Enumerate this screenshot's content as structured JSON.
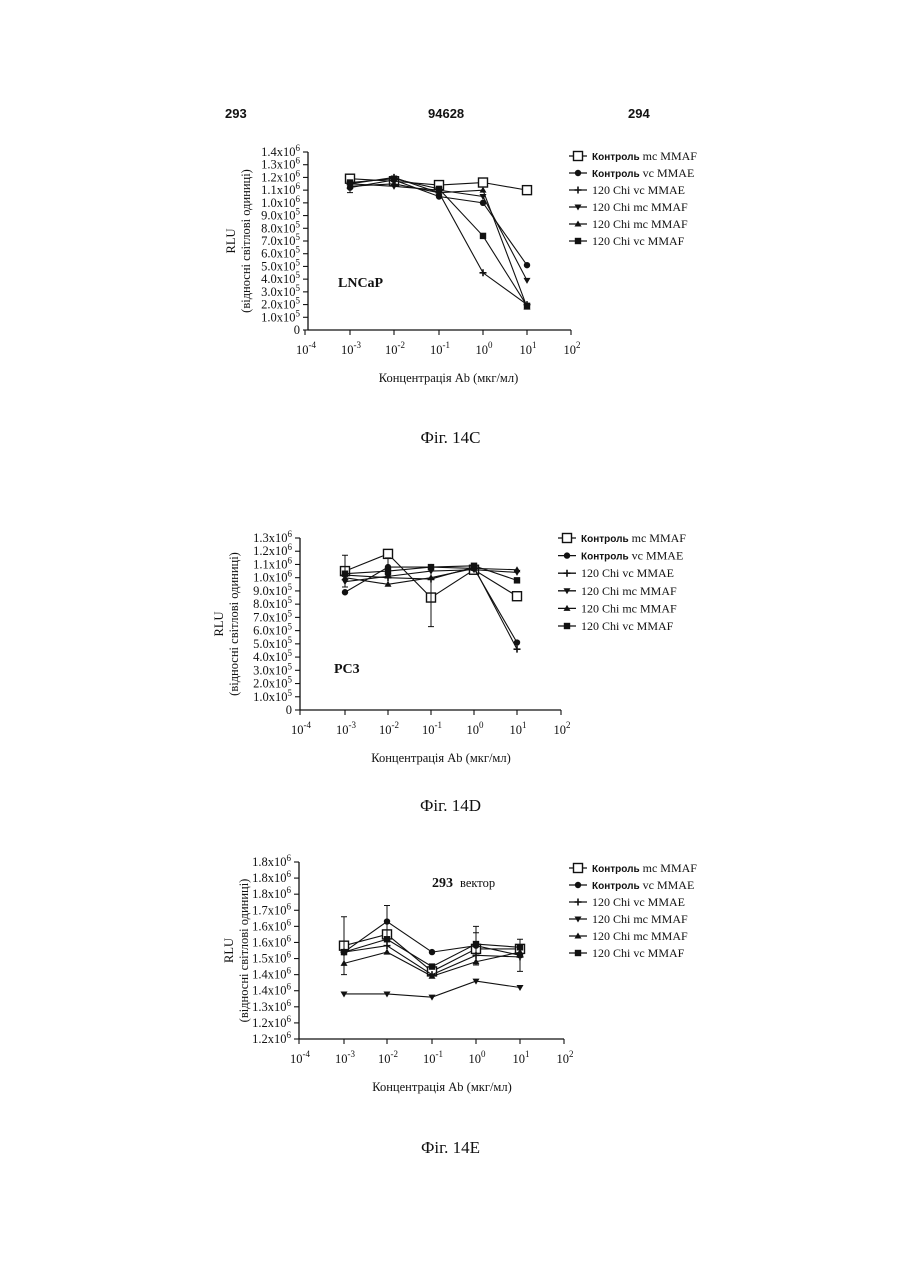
{
  "page": {
    "left_number": "293",
    "center_number": "94628",
    "right_number": "294"
  },
  "figures": [
    {
      "caption": "Фіг. 14C",
      "inset_label": "LNCaP",
      "ylabel": "RLU",
      "ylabel2": "(відносні світлові одиниці)",
      "xlabel": "Концентрація Ab (мкг/мл)",
      "y_ticks": [
        "0",
        "1.0x10",
        "2.0x10",
        "3.0x10",
        "4.0x10",
        "5.0x10",
        "6.0x10",
        "7.0x10",
        "8.0x10",
        "9.0x10",
        "1.0x10",
        "1.1x10",
        "1.2x10",
        "1.3x10",
        "1.4x10"
      ],
      "y_exps": [
        "",
        "5",
        "5",
        "5",
        "5",
        "5",
        "5",
        "5",
        "5",
        "5",
        "6",
        "6",
        "6",
        "6",
        "6"
      ],
      "x_ticks": [
        {
          "base": "10",
          "exp": "-4"
        },
        {
          "base": "10",
          "exp": "-3"
        },
        {
          "base": "10",
          "exp": "-2"
        },
        {
          "base": "10",
          "exp": "-1"
        },
        {
          "base": "10",
          "exp": "0"
        },
        {
          "base": "10",
          "exp": "1"
        },
        {
          "base": "10",
          "exp": "2"
        }
      ],
      "legend": [
        "Контроль mc MMAF",
        "Контроль vc MMAE",
        "120 Chi vc MMAE",
        "120 Chi mc MMAF",
        "120 Chi mc MMAF",
        "120 Chi vc MMAF"
      ]
    },
    {
      "caption": "Фіг. 14D",
      "inset_label": "PC3",
      "ylabel": "RLU",
      "ylabel2": "(відносні світлові одиниці)",
      "xlabel": "Концентрація Ab (мкг/мл)",
      "y_ticks": [
        "0",
        "1.0x10",
        "2.0x10",
        "3.0x10",
        "4.0x10",
        "5.0x10",
        "6.0x10",
        "7.0x10",
        "8.0x10",
        "9.0x10",
        "1.0x10",
        "1.1x10",
        "1.2x10",
        "1.3x10"
      ],
      "y_exps": [
        "",
        "5",
        "5",
        "5",
        "5",
        "5",
        "5",
        "5",
        "5",
        "5",
        "6",
        "6",
        "6",
        "6"
      ],
      "x_ticks": [
        {
          "base": "10",
          "exp": "-4"
        },
        {
          "base": "10",
          "exp": "-3"
        },
        {
          "base": "10",
          "exp": "-2"
        },
        {
          "base": "10",
          "exp": "-1"
        },
        {
          "base": "10",
          "exp": "0"
        },
        {
          "base": "10",
          "exp": "1"
        },
        {
          "base": "10",
          "exp": "2"
        }
      ],
      "legend": [
        "Контроль mc MMAF",
        "Контроль vc MMAE",
        "120 Chi vc MMAE",
        "120 Chi mc MMAF",
        "120 Chi mc MMAF",
        "120 Chi vc MMAF"
      ]
    },
    {
      "caption": "Фіг. 14E",
      "inset_label": "293",
      "inset_label2": "вектор",
      "ylabel": "RLU",
      "ylabel2": "(відносні світлові одиниці)",
      "xlabel": "Концентрація Ab (мкг/мл)",
      "y_ticks": [
        "1.2x10",
        "1.2x10",
        "1.3x10",
        "1.4x10",
        "1.4x10",
        "1.5x10",
        "1.6x10",
        "1.6x10",
        "1.7x10",
        "1.8x10",
        "1.8x10",
        "1.8x10"
      ],
      "y_exps": [
        "6",
        "6",
        "6",
        "6",
        "6",
        "6",
        "6",
        "6",
        "6",
        "6",
        "6",
        "6"
      ],
      "x_ticks": [
        {
          "base": "10",
          "exp": "-4"
        },
        {
          "base": "10",
          "exp": "-3"
        },
        {
          "base": "10",
          "exp": "-2"
        },
        {
          "base": "10",
          "exp": "-1"
        },
        {
          "base": "10",
          "exp": "0"
        },
        {
          "base": "10",
          "exp": "1"
        },
        {
          "base": "10",
          "exp": "2"
        }
      ],
      "legend": [
        "Контроль mc MMAF",
        "Контроль vc MMAE",
        "120 Chi vc MMAE",
        "120 Chi mc MMAF",
        "120 Chi mc MMAF",
        "120 Chi vc MMAF"
      ]
    }
  ],
  "chart_data": [
    {
      "type": "line",
      "x_scale": "log",
      "x": [
        0.001,
        0.01,
        0.1,
        1,
        10
      ],
      "xlim": [
        0.0001,
        100
      ],
      "ylim": [
        0,
        1400000
      ],
      "series": [
        {
          "name": "Контроль mc MMAF",
          "marker": "square-open",
          "values": [
            1190000,
            1170000,
            1140000,
            1160000,
            1100000
          ]
        },
        {
          "name": "Контроль vc MMAE",
          "marker": "circle",
          "values": [
            1120000,
            1180000,
            1050000,
            1000000,
            510000
          ]
        },
        {
          "name": "120 Chi vc MMAE",
          "marker": "plus",
          "values": [
            1150000,
            1200000,
            1080000,
            450000,
            200000
          ]
        },
        {
          "name": "120 Chi mc MMAF",
          "marker": "tri-down",
          "values": [
            1150000,
            1130000,
            1100000,
            1050000,
            390000
          ]
        },
        {
          "name": "120 Chi mc MMAF",
          "marker": "tri-up",
          "values": [
            1130000,
            1150000,
            1080000,
            1100000,
            180000
          ]
        },
        {
          "name": "120 Chi vc MMAF",
          "marker": "square",
          "values": [
            1160000,
            1190000,
            1110000,
            740000,
            190000
          ]
        }
      ]
    },
    {
      "type": "line",
      "x_scale": "log",
      "x": [
        0.001,
        0.01,
        0.1,
        1,
        10
      ],
      "xlim": [
        0.0001,
        100
      ],
      "ylim": [
        0,
        1300000
      ],
      "series": [
        {
          "name": "Контроль mc MMAF",
          "marker": "square-open",
          "values": [
            1050000,
            1180000,
            850000,
            1060000,
            860000
          ]
        },
        {
          "name": "Контроль vc MMAE",
          "marker": "circle",
          "values": [
            890000,
            1080000,
            1080000,
            1070000,
            510000
          ]
        },
        {
          "name": "120 Chi vc MMAE",
          "marker": "plus",
          "values": [
            1020000,
            1000000,
            990000,
            1080000,
            460000
          ]
        },
        {
          "name": "120 Chi mc MMAF",
          "marker": "tri-down",
          "values": [
            970000,
            1010000,
            1050000,
            1060000,
            1040000
          ]
        },
        {
          "name": "120 Chi mc MMAF",
          "marker": "tri-up",
          "values": [
            1000000,
            950000,
            1000000,
            1070000,
            1060000
          ]
        },
        {
          "name": "120 Chi vc MMAF",
          "marker": "square",
          "values": [
            1030000,
            1050000,
            1080000,
            1090000,
            980000
          ]
        }
      ]
    },
    {
      "type": "line",
      "x_scale": "log",
      "x": [
        0.001,
        0.01,
        0.1,
        1,
        10
      ],
      "xlim": [
        0.0001,
        100
      ],
      "ylim_ticks": [
        0,
        11
      ],
      "series": [
        {
          "name": "Контроль mc MMAF",
          "marker": "square-open",
          "values": [
            5.8,
            6.5,
            4.2,
            5.6,
            5.6
          ]
        },
        {
          "name": "Контроль vc MMAE",
          "marker": "circle",
          "values": [
            5.4,
            7.3,
            5.4,
            5.8,
            5.2
          ]
        },
        {
          "name": "120 Chi vc MMAE",
          "marker": "plus",
          "values": [
            5.4,
            5.8,
            4.0,
            5.2,
            5.1
          ]
        },
        {
          "name": "120 Chi mc MMAF",
          "marker": "tri-down",
          "values": [
            2.8,
            2.8,
            2.6,
            3.6,
            3.2
          ]
        },
        {
          "name": "120 Chi mc MMAF",
          "marker": "tri-up",
          "values": [
            4.7,
            5.4,
            3.9,
            4.8,
            5.4
          ]
        },
        {
          "name": "120 Chi vc MMAF",
          "marker": "square",
          "values": [
            5.4,
            6.2,
            4.5,
            5.9,
            5.7
          ]
        }
      ]
    }
  ]
}
